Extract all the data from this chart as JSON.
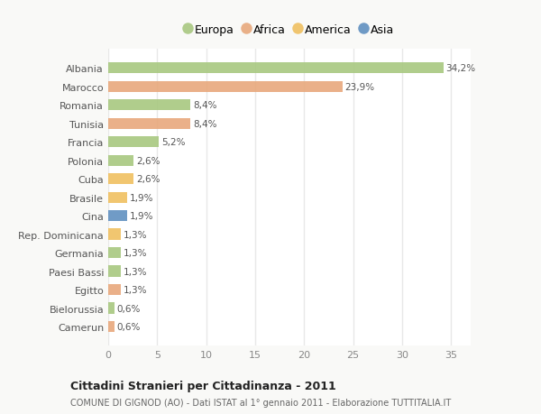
{
  "countries": [
    "Albania",
    "Marocco",
    "Romania",
    "Tunisia",
    "Francia",
    "Polonia",
    "Cuba",
    "Brasile",
    "Cina",
    "Rep. Dominicana",
    "Germania",
    "Paesi Bassi",
    "Egitto",
    "Bielorussia",
    "Camerun"
  ],
  "values": [
    34.2,
    23.9,
    8.4,
    8.4,
    5.2,
    2.6,
    2.6,
    1.9,
    1.9,
    1.3,
    1.3,
    1.3,
    1.3,
    0.6,
    0.6
  ],
  "labels": [
    "34,2%",
    "23,9%",
    "8,4%",
    "8,4%",
    "5,2%",
    "2,6%",
    "2,6%",
    "1,9%",
    "1,9%",
    "1,3%",
    "1,3%",
    "1,3%",
    "1,3%",
    "0,6%",
    "0,6%"
  ],
  "continents": [
    "Europa",
    "Africa",
    "Europa",
    "Africa",
    "Europa",
    "Europa",
    "America",
    "America",
    "Asia",
    "America",
    "Europa",
    "Europa",
    "Africa",
    "Europa",
    "Africa"
  ],
  "colors": {
    "Europa": "#a8c880",
    "Africa": "#e8a87c",
    "America": "#f0c060",
    "Asia": "#6090c0"
  },
  "legend_order": [
    "Europa",
    "Africa",
    "America",
    "Asia"
  ],
  "xlim": [
    0,
    37
  ],
  "xticks": [
    0,
    5,
    10,
    15,
    20,
    25,
    30,
    35
  ],
  "title": "Cittadini Stranieri per Cittadinanza - 2011",
  "subtitle": "COMUNE DI GIGNOD (AO) - Dati ISTAT al 1° gennaio 2011 - Elaborazione TUTTITALIA.IT",
  "bg_color": "#f9f9f7",
  "plot_bg_color": "#ffffff",
  "grid_color": "#e8e8e8",
  "bar_height": 0.6
}
